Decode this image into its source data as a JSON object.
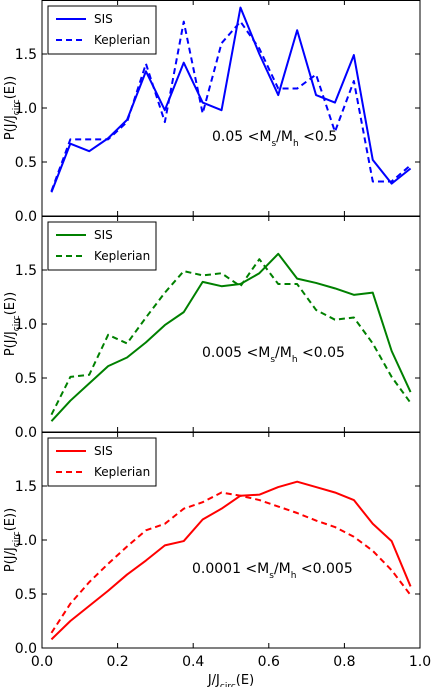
{
  "chart_data": [
    {
      "type": "line",
      "x": [
        0.025,
        0.075,
        0.125,
        0.175,
        0.225,
        0.275,
        0.325,
        0.375,
        0.425,
        0.475,
        0.525,
        0.575,
        0.625,
        0.675,
        0.725,
        0.775,
        0.825,
        0.875,
        0.925,
        0.975
      ],
      "series": [
        {
          "name": "SIS",
          "style": "solid",
          "color": "#0000ff",
          "values": [
            0.22,
            0.67,
            0.6,
            0.72,
            0.89,
            1.34,
            0.98,
            1.42,
            1.05,
            0.98,
            1.93,
            1.5,
            1.12,
            1.72,
            1.12,
            1.05,
            1.49,
            0.52,
            0.3,
            0.44
          ]
        },
        {
          "name": "Keplerian",
          "style": "dashed",
          "color": "#0000ff",
          "values": [
            0.23,
            0.71,
            0.71,
            0.71,
            0.87,
            1.41,
            0.87,
            1.8,
            0.95,
            1.6,
            1.8,
            1.55,
            1.18,
            1.18,
            1.31,
            0.78,
            1.25,
            0.32,
            0.32,
            0.47
          ]
        }
      ],
      "annotation": {
        "prefix": "0.05 <M",
        "sub1": "s",
        "mid": "/M",
        "sub2": "h",
        "suffix": " <0.5"
      },
      "legend_position": "top-left",
      "ylim": [
        0.0,
        2.0
      ],
      "xlim": [
        0.0,
        1.0
      ],
      "yticks": [
        "0.0",
        "0.5",
        "1.0",
        "1.5"
      ]
    },
    {
      "type": "line",
      "x": [
        0.025,
        0.075,
        0.125,
        0.175,
        0.225,
        0.275,
        0.325,
        0.375,
        0.425,
        0.475,
        0.525,
        0.575,
        0.625,
        0.675,
        0.725,
        0.775,
        0.825,
        0.875,
        0.925,
        0.975
      ],
      "series": [
        {
          "name": "SIS",
          "style": "solid",
          "color": "#008000",
          "values": [
            0.1,
            0.29,
            0.45,
            0.61,
            0.69,
            0.83,
            0.99,
            1.11,
            1.39,
            1.35,
            1.37,
            1.47,
            1.65,
            1.42,
            1.38,
            1.33,
            1.27,
            1.29,
            0.75,
            0.37
          ]
        },
        {
          "name": "Keplerian",
          "style": "dashed",
          "color": "#008000",
          "values": [
            0.16,
            0.51,
            0.53,
            0.9,
            0.82,
            1.06,
            1.29,
            1.49,
            1.45,
            1.47,
            1.35,
            1.6,
            1.37,
            1.37,
            1.13,
            1.04,
            1.06,
            0.82,
            0.51,
            0.27
          ]
        }
      ],
      "annotation": {
        "prefix": "0.005 <M",
        "sub1": "s",
        "mid": "/M",
        "sub2": "h",
        "suffix": " <0.05"
      },
      "legend_position": "top-left",
      "ylim": [
        0.0,
        2.0
      ],
      "xlim": [
        0.0,
        1.0
      ],
      "yticks": [
        "0.0",
        "0.5",
        "1.0",
        "1.5"
      ]
    },
    {
      "type": "line",
      "x": [
        0.025,
        0.075,
        0.125,
        0.175,
        0.225,
        0.275,
        0.325,
        0.375,
        0.425,
        0.475,
        0.525,
        0.575,
        0.625,
        0.675,
        0.725,
        0.775,
        0.825,
        0.875,
        0.925,
        0.975
      ],
      "series": [
        {
          "name": "SIS",
          "style": "solid",
          "color": "#ff0000",
          "values": [
            0.08,
            0.25,
            0.39,
            0.53,
            0.68,
            0.81,
            0.95,
            0.99,
            1.19,
            1.29,
            1.41,
            1.42,
            1.49,
            1.54,
            1.49,
            1.44,
            1.37,
            1.15,
            0.99,
            0.57
          ]
        },
        {
          "name": "Keplerian",
          "style": "dashed",
          "color": "#ff0000",
          "values": [
            0.14,
            0.41,
            0.61,
            0.78,
            0.94,
            1.09,
            1.15,
            1.29,
            1.35,
            1.44,
            1.41,
            1.37,
            1.31,
            1.25,
            1.18,
            1.12,
            1.03,
            0.9,
            0.72,
            0.49
          ]
        }
      ],
      "annotation": {
        "prefix": "0.0001 <M",
        "sub1": "s",
        "mid": "/M",
        "sub2": "h",
        "suffix": " <0.005"
      },
      "legend_position": "top-left",
      "ylim": [
        0.0,
        2.0
      ],
      "xlim": [
        0.0,
        1.0
      ],
      "yticks": [
        "0.0",
        "0.5",
        "1.0",
        "1.5"
      ]
    }
  ],
  "axes": {
    "ylabel": {
      "main": "P(J/J",
      "sub": "circ",
      "tail": "(E))"
    },
    "xlabel": {
      "main": "J/J",
      "sub": "circ",
      "tail": "(E)"
    },
    "xticks": [
      {
        "v": 0.0,
        "label": "0.0"
      },
      {
        "v": 0.2,
        "label": "0.2"
      },
      {
        "v": 0.4,
        "label": "0.4"
      },
      {
        "v": 0.6,
        "label": "0.6"
      },
      {
        "v": 0.8,
        "label": "0.8"
      },
      {
        "v": 1.0,
        "label": "1.0"
      }
    ]
  }
}
